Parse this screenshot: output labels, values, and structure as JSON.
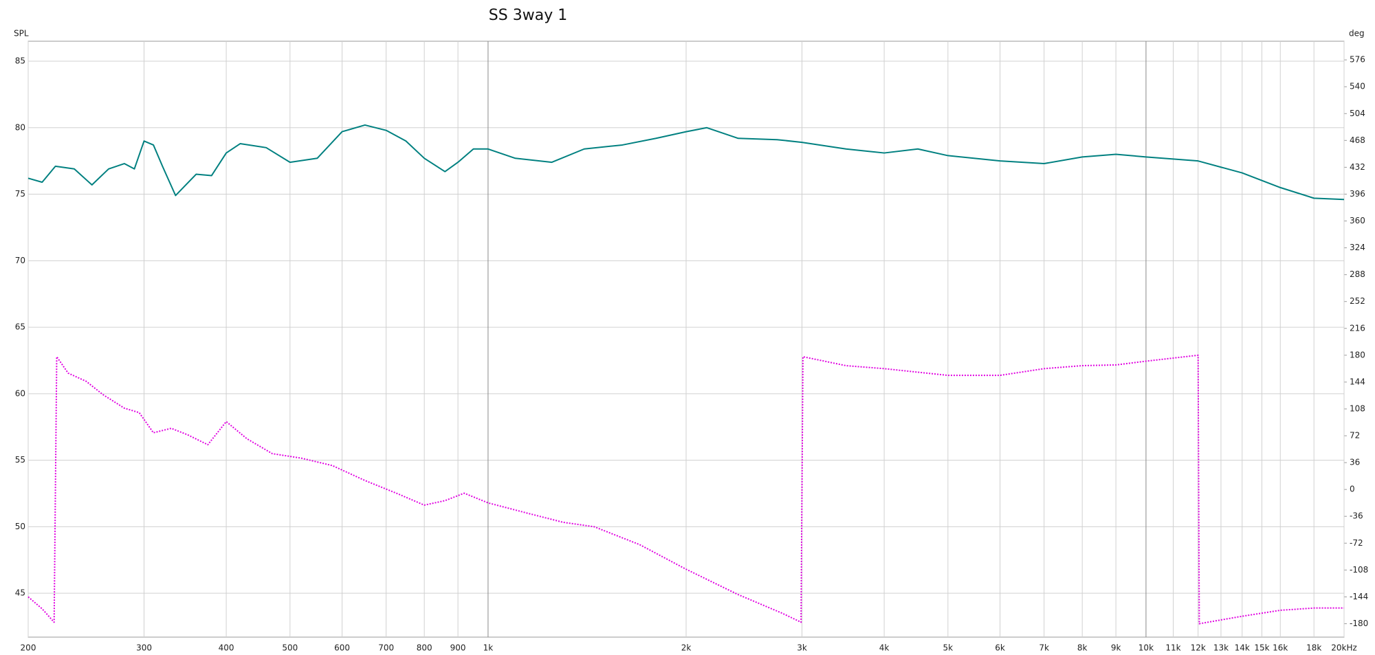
{
  "chart_data": {
    "type": "line",
    "title": "SS 3way 1",
    "y_label": "SPL",
    "y2_label": "deg",
    "log_x": true,
    "grid": true,
    "xlim": [
      200,
      20000
    ],
    "ylim": [
      41.7,
      86.5
    ],
    "y2lim": [
      -198,
      601
    ],
    "xticks": [
      200,
      300,
      400,
      500,
      600,
      700,
      800,
      900,
      {
        "value": 1000,
        "label": "1k"
      },
      {
        "value": 2000,
        "label": "2k"
      },
      {
        "value": 3000,
        "label": "3k"
      },
      {
        "value": 4000,
        "label": "4k"
      },
      {
        "value": 5000,
        "label": "5k"
      },
      {
        "value": 6000,
        "label": "6k"
      },
      {
        "value": 7000,
        "label": "7k"
      },
      {
        "value": 8000,
        "label": "8k"
      },
      {
        "value": 9000,
        "label": "9k"
      },
      {
        "value": 10000,
        "label": "10k"
      },
      {
        "value": 11000,
        "label": "11k"
      },
      {
        "value": 12000,
        "label": "12k"
      },
      {
        "value": 13000,
        "label": "13k"
      },
      {
        "value": 14000,
        "label": "14k"
      },
      {
        "value": 15000,
        "label": "15k"
      },
      {
        "value": 16000,
        "label": "16k"
      },
      {
        "value": 18000,
        "label": "18k"
      },
      {
        "value": 20000,
        "label": "20kHz"
      }
    ],
    "yticks": [
      45,
      50,
      55,
      60,
      65,
      70,
      75,
      80,
      85
    ],
    "y2ticks": [
      -180,
      -144,
      -108,
      -72,
      -36,
      0,
      36,
      72,
      108,
      144,
      180,
      216,
      252,
      288,
      324,
      360,
      396,
      432,
      468,
      504,
      540,
      576
    ],
    "series": [
      {
        "color": "#008080",
        "style": "solid",
        "x": [
          200,
          210,
          220,
          235,
          250,
          265,
          280,
          290,
          300,
          310,
          320,
          335,
          360,
          380,
          400,
          420,
          460,
          500,
          550,
          600,
          650,
          700,
          750,
          800,
          860,
          900,
          950,
          1000,
          1100,
          1250,
          1400,
          1600,
          1800,
          2000,
          2150,
          2400,
          2750,
          3000,
          3500,
          4000,
          4500,
          5000,
          6000,
          7000,
          8000,
          9000,
          10000,
          12000,
          14000,
          16000,
          18000,
          20000
        ],
        "values": [
          76.2,
          75.9,
          77.1,
          76.9,
          75.7,
          76.9,
          77.3,
          76.9,
          79.0,
          78.7,
          77.1,
          74.9,
          76.5,
          76.4,
          78.1,
          78.8,
          78.5,
          77.4,
          77.7,
          79.7,
          80.2,
          79.8,
          79.0,
          77.7,
          76.7,
          77.4,
          78.4,
          78.4,
          77.7,
          77.4,
          78.4,
          78.7,
          79.2,
          79.7,
          80.0,
          79.2,
          79.1,
          78.9,
          78.4,
          78.1,
          78.4,
          77.9,
          77.5,
          77.3,
          77.8,
          78.0,
          77.8,
          77.5,
          76.6,
          75.5,
          74.7,
          74.6
        ]
      },
      {
        "color": "#e000e0",
        "style": "dotted",
        "axis": "y2",
        "x": [
          200,
          210,
          219,
          221,
          230,
          245,
          260,
          280,
          295,
          310,
          330,
          350,
          375,
          400,
          430,
          470,
          520,
          580,
          650,
          730,
          800,
          860,
          920,
          1000,
          1150,
          1300,
          1450,
          1700,
          2000,
          2400,
          2800,
          2990,
          3010,
          3500,
          4000,
          5000,
          6000,
          7000,
          8000,
          9000,
          10000,
          12000,
          12050,
          14000,
          16000,
          18000,
          20000
        ],
        "values": [
          -144,
          -160,
          -178,
          178,
          156,
          145,
          127,
          109,
          103,
          76,
          82,
          73,
          60,
          91,
          68,
          48,
          42,
          32,
          12,
          -6,
          -21,
          -15,
          -5,
          -18,
          -32,
          -44,
          -50,
          -74,
          -107,
          -141,
          -166,
          -178,
          178,
          166,
          162,
          153,
          153,
          162,
          166,
          167,
          172,
          180,
          -180,
          -170,
          -162,
          -159,
          -159
        ]
      }
    ]
  }
}
